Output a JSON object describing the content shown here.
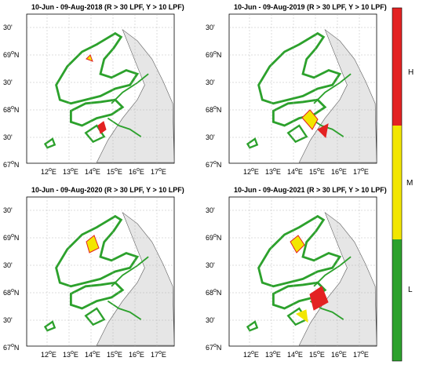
{
  "colors": {
    "high": "#e32222",
    "medium": "#f2e600",
    "low": "#2ca12c",
    "land": "#e6e6e6",
    "coast": "#1a7f1a"
  },
  "panels": [
    {
      "title": "10-Jun - 09-Aug-2018 (R > 30 LPF, Y > 10 LPF)"
    },
    {
      "title": "10-Jun - 09-Aug-2019 (R > 30 LPF, Y > 10 LPF)"
    },
    {
      "title": "10-Jun - 09-Aug-2020 (R > 30 LPF, Y > 10 LPF)"
    },
    {
      "title": "10-Jun - 09-Aug-2021 (R > 30 LPF, Y > 10 LPF)"
    }
  ],
  "axes": {
    "lon_labels": [
      "12",
      "13",
      "14",
      "15",
      "16",
      "17",
      "18"
    ],
    "lon_suffix": "E",
    "lat_labels": [
      "30'",
      "69",
      "30'",
      "68",
      "30'",
      "67"
    ],
    "lat_suffix": "N"
  },
  "colorbar": {
    "labels": [
      "H",
      "M",
      "L"
    ]
  }
}
